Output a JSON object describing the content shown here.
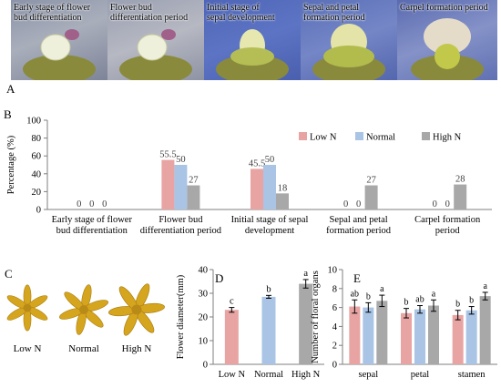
{
  "panel_letters": {
    "a": "A",
    "b": "B",
    "c": "C",
    "d": "D",
    "e": "E"
  },
  "photo_labels": [
    {
      "line1": "Early stage of flower",
      "line2": "bud differentiation"
    },
    {
      "line1": "Flower bud",
      "line2": "differentiation period"
    },
    {
      "line1": "Initial stage of",
      "line2": "sepal development"
    },
    {
      "line1": "Sepal and petal",
      "line2": "formation period"
    },
    {
      "line1": "Carpel formation period",
      "line2": ""
    }
  ],
  "flower_labels": [
    "Low N",
    "Normal",
    "High N"
  ],
  "colors": {
    "low": "#e8a4a3",
    "normal": "#a9c4e4",
    "high": "#a8a8a8"
  },
  "chart_data": [
    {
      "type": "bar",
      "title": "",
      "xlabel": "",
      "ylabel": "Percentage (%)",
      "ylim": [
        0,
        100
      ],
      "yticks": [
        0,
        20,
        40,
        60,
        80,
        100
      ],
      "grid": false,
      "legend_placement": "top-right",
      "categories": [
        [
          "Early stage of flower",
          "bud differentiation"
        ],
        [
          "Flower bud",
          "differentiation period"
        ],
        [
          "Initial stage of sepal",
          "development"
        ],
        [
          "Sepal and petal",
          "formation period"
        ],
        [
          "Carpel formation",
          "period"
        ]
      ],
      "series": [
        {
          "name": "Low N",
          "values": [
            0,
            55.5,
            45.5,
            0,
            0
          ],
          "labels": [
            "0",
            "55.5",
            "45.5",
            "0",
            "0"
          ]
        },
        {
          "name": "Normal",
          "values": [
            0,
            50,
            50,
            0,
            0
          ],
          "labels": [
            "0",
            "50",
            "50",
            "0",
            "0"
          ]
        },
        {
          "name": "High N",
          "values": [
            0,
            27,
            18,
            27,
            28
          ],
          "labels": [
            "0",
            "27",
            "18",
            "27",
            "28"
          ]
        }
      ]
    },
    {
      "type": "bar",
      "title": "",
      "xlabel": "",
      "ylabel": "Flower diameter(mm)",
      "ylim": [
        0,
        40
      ],
      "yticks": [
        0,
        10,
        20,
        30,
        40
      ],
      "grid": false,
      "categories": [
        "Low N",
        "Normal",
        "High N"
      ],
      "values": [
        23,
        28.5,
        34
      ],
      "errors": [
        1.0,
        0.6,
        1.8
      ],
      "letters": [
        "c",
        "b",
        "a"
      ]
    },
    {
      "type": "bar",
      "title": "",
      "xlabel": "",
      "ylabel": "Number of floral organs",
      "ylim": [
        0,
        10
      ],
      "yticks": [
        0,
        2,
        4,
        6,
        8,
        10
      ],
      "grid": false,
      "categories": [
        "sepal",
        "petal",
        "stamen"
      ],
      "series": [
        {
          "name": "Low N",
          "values": [
            6.1,
            5.4,
            5.2
          ],
          "errors": [
            0.7,
            0.5,
            0.5
          ],
          "letters": [
            "ab",
            "b",
            "b"
          ]
        },
        {
          "name": "Normal",
          "values": [
            6.0,
            5.8,
            5.7
          ],
          "errors": [
            0.5,
            0.4,
            0.4
          ],
          "letters": [
            "b",
            "ab",
            "b"
          ]
        },
        {
          "name": "High N",
          "values": [
            6.7,
            6.2,
            7.2
          ],
          "errors": [
            0.6,
            0.6,
            0.4
          ],
          "letters": [
            "a",
            "a",
            "a"
          ]
        }
      ]
    }
  ]
}
